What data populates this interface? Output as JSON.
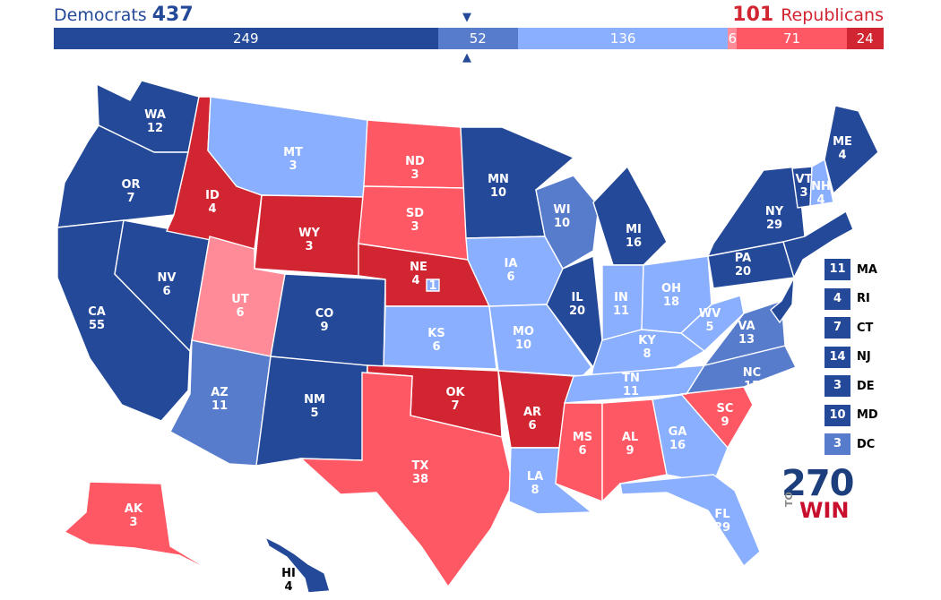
{
  "header": {
    "dem_label": "Democrats",
    "dem_total": "437",
    "rep_total": "101",
    "rep_label": "Republicans"
  },
  "bar": [
    {
      "value": "249",
      "color": "#244999",
      "votes": 249
    },
    {
      "value": "52",
      "color": "#577ccc",
      "votes": 52
    },
    {
      "value": "136",
      "color": "#8aafff",
      "votes": 136
    },
    {
      "value": "6",
      "color": "#ff8b98",
      "votes": 6
    },
    {
      "value": "71",
      "color": "#ff5865",
      "votes": 71
    },
    {
      "value": "24",
      "color": "#d22532",
      "votes": 24
    }
  ],
  "colors": {
    "safe_dem": "#244999",
    "likely_dem": "#577ccc",
    "lean_dem": "#8aafff",
    "lean_rep": "#ff8b98",
    "likely_rep": "#ff5865",
    "safe_rep": "#d22532"
  },
  "states": {
    "WA": {
      "abbr": "WA",
      "ev": "12",
      "rating": "safe_dem"
    },
    "OR": {
      "abbr": "OR",
      "ev": "7",
      "rating": "safe_dem"
    },
    "CA": {
      "abbr": "CA",
      "ev": "55",
      "rating": "safe_dem"
    },
    "NV": {
      "abbr": "NV",
      "ev": "6",
      "rating": "safe_dem"
    },
    "ID": {
      "abbr": "ID",
      "ev": "4",
      "rating": "safe_rep"
    },
    "MT": {
      "abbr": "MT",
      "ev": "3",
      "rating": "lean_dem"
    },
    "WY": {
      "abbr": "WY",
      "ev": "3",
      "rating": "safe_rep"
    },
    "UT": {
      "abbr": "UT",
      "ev": "6",
      "rating": "lean_rep"
    },
    "AZ": {
      "abbr": "AZ",
      "ev": "11",
      "rating": "likely_dem"
    },
    "CO": {
      "abbr": "CO",
      "ev": "9",
      "rating": "safe_dem"
    },
    "NM": {
      "abbr": "NM",
      "ev": "5",
      "rating": "safe_dem"
    },
    "ND": {
      "abbr": "ND",
      "ev": "3",
      "rating": "likely_rep"
    },
    "SD": {
      "abbr": "SD",
      "ev": "3",
      "rating": "likely_rep"
    },
    "NE": {
      "abbr": "NE",
      "ev": "4",
      "rating": "safe_rep"
    },
    "NE2": {
      "abbr": "",
      "ev": "1",
      "rating": "lean_dem"
    },
    "KS": {
      "abbr": "KS",
      "ev": "6",
      "rating": "lean_dem"
    },
    "OK": {
      "abbr": "OK",
      "ev": "7",
      "rating": "safe_rep"
    },
    "TX": {
      "abbr": "TX",
      "ev": "38",
      "rating": "likely_rep"
    },
    "MN": {
      "abbr": "MN",
      "ev": "10",
      "rating": "safe_dem"
    },
    "IA": {
      "abbr": "IA",
      "ev": "6",
      "rating": "lean_dem"
    },
    "MO": {
      "abbr": "MO",
      "ev": "10",
      "rating": "lean_dem"
    },
    "AR": {
      "abbr": "AR",
      "ev": "6",
      "rating": "safe_rep"
    },
    "LA": {
      "abbr": "LA",
      "ev": "8",
      "rating": "lean_dem"
    },
    "WI": {
      "abbr": "WI",
      "ev": "10",
      "rating": "likely_dem"
    },
    "IL": {
      "abbr": "IL",
      "ev": "20",
      "rating": "safe_dem"
    },
    "MI": {
      "abbr": "MI",
      "ev": "16",
      "rating": "safe_dem"
    },
    "IN": {
      "abbr": "IN",
      "ev": "11",
      "rating": "lean_dem"
    },
    "OH": {
      "abbr": "OH",
      "ev": "18",
      "rating": "lean_dem"
    },
    "KY": {
      "abbr": "KY",
      "ev": "8",
      "rating": "lean_dem"
    },
    "TN": {
      "abbr": "TN",
      "ev": "11",
      "rating": "lean_dem"
    },
    "MS": {
      "abbr": "MS",
      "ev": "6",
      "rating": "likely_rep"
    },
    "AL": {
      "abbr": "AL",
      "ev": "9",
      "rating": "likely_rep"
    },
    "GA": {
      "abbr": "GA",
      "ev": "16",
      "rating": "lean_dem"
    },
    "FL": {
      "abbr": "FL",
      "ev": "29",
      "rating": "lean_dem"
    },
    "SC": {
      "abbr": "SC",
      "ev": "9",
      "rating": "likely_rep"
    },
    "NC": {
      "abbr": "NC",
      "ev": "15",
      "rating": "likely_dem"
    },
    "VA": {
      "abbr": "VA",
      "ev": "13",
      "rating": "likely_dem"
    },
    "WV": {
      "abbr": "WV",
      "ev": "5",
      "rating": "lean_dem"
    },
    "PA": {
      "abbr": "PA",
      "ev": "20",
      "rating": "safe_dem"
    },
    "NY": {
      "abbr": "NY",
      "ev": "29",
      "rating": "safe_dem"
    },
    "VT": {
      "abbr": "VT",
      "ev": "3",
      "rating": "safe_dem"
    },
    "NH": {
      "abbr": "NH",
      "ev": "4",
      "rating": "lean_dem"
    },
    "ME": {
      "abbr": "ME",
      "ev": "4",
      "rating": "safe_dem"
    },
    "AK": {
      "abbr": "AK",
      "ev": "3",
      "rating": "likely_rep"
    },
    "HI": {
      "abbr": "HI",
      "ev": "4",
      "rating": "safe_dem"
    }
  },
  "legend": [
    {
      "ev": "11",
      "abbr": "MA",
      "rating": "safe_dem"
    },
    {
      "ev": "4",
      "abbr": "RI",
      "rating": "safe_dem"
    },
    {
      "ev": "7",
      "abbr": "CT",
      "rating": "safe_dem"
    },
    {
      "ev": "14",
      "abbr": "NJ",
      "rating": "safe_dem"
    },
    {
      "ev": "3",
      "abbr": "DE",
      "rating": "safe_dem"
    },
    {
      "ev": "10",
      "abbr": "MD",
      "rating": "safe_dem"
    },
    {
      "ev": "3",
      "abbr": "DC",
      "rating": "likely_dem"
    }
  ],
  "logo": {
    "number": "270",
    "to": "TO",
    "win": "WIN"
  }
}
